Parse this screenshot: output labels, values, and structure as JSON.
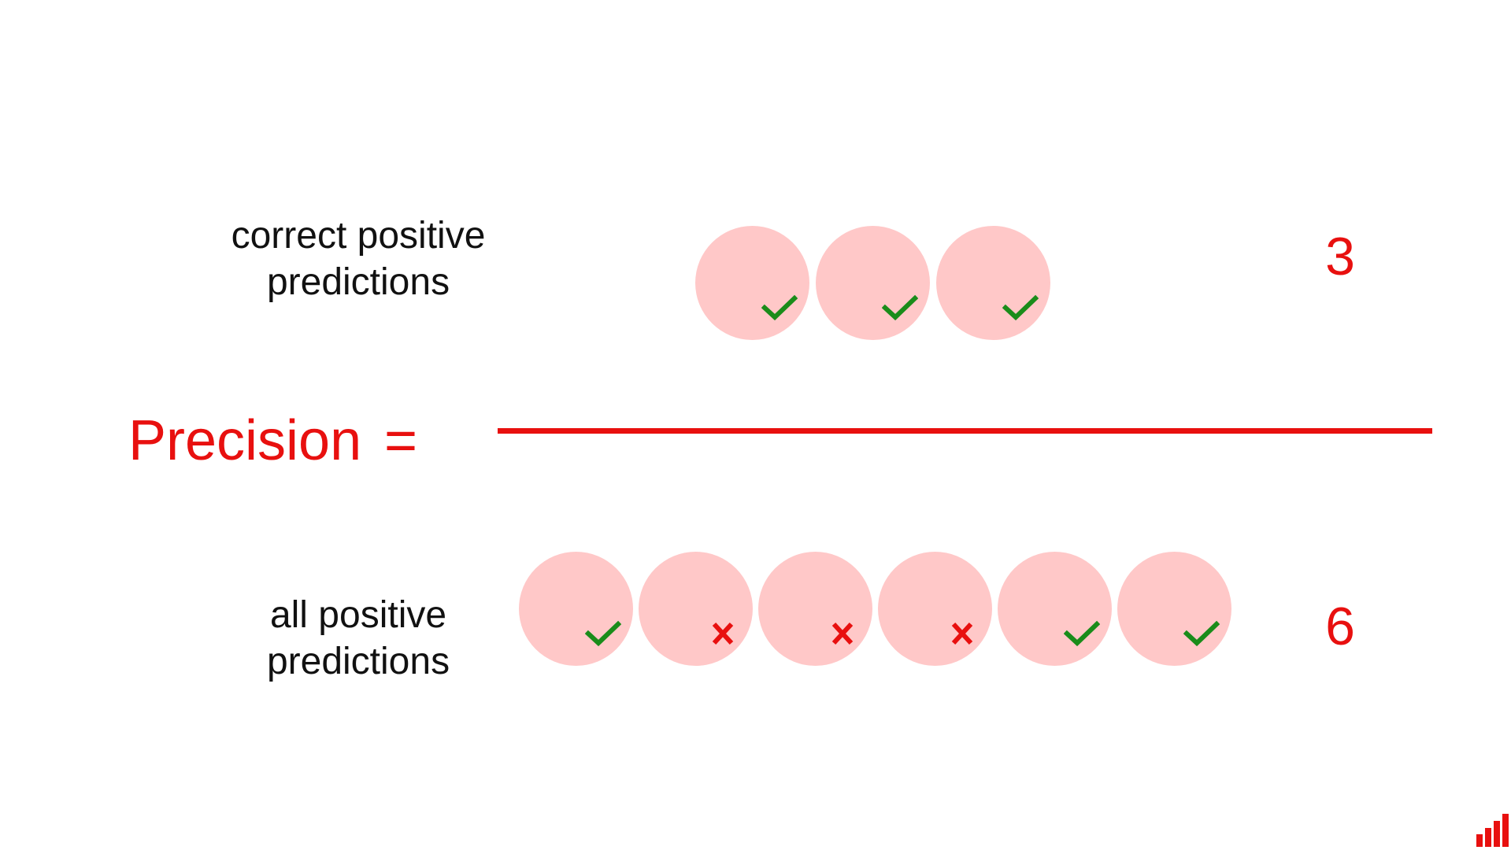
{
  "formula": {
    "name": "Precision",
    "equals": "="
  },
  "numerator": {
    "label": "correct positive\npredictions",
    "count": "3",
    "items": [
      "check",
      "check",
      "check"
    ]
  },
  "denominator": {
    "label": "all positive\npredictions",
    "count": "6",
    "items": [
      "check",
      "cross",
      "cross",
      "cross",
      "check",
      "check"
    ]
  },
  "colors": {
    "accent": "#e8100f",
    "circle_fill": "#ffc8c8",
    "check": "#1a8c1a",
    "cross": "#e8100f",
    "text": "#111111"
  },
  "icons": {
    "check": "checkmark-icon",
    "cross": "cross-icon",
    "logo": "bar-chart-logo-icon"
  }
}
